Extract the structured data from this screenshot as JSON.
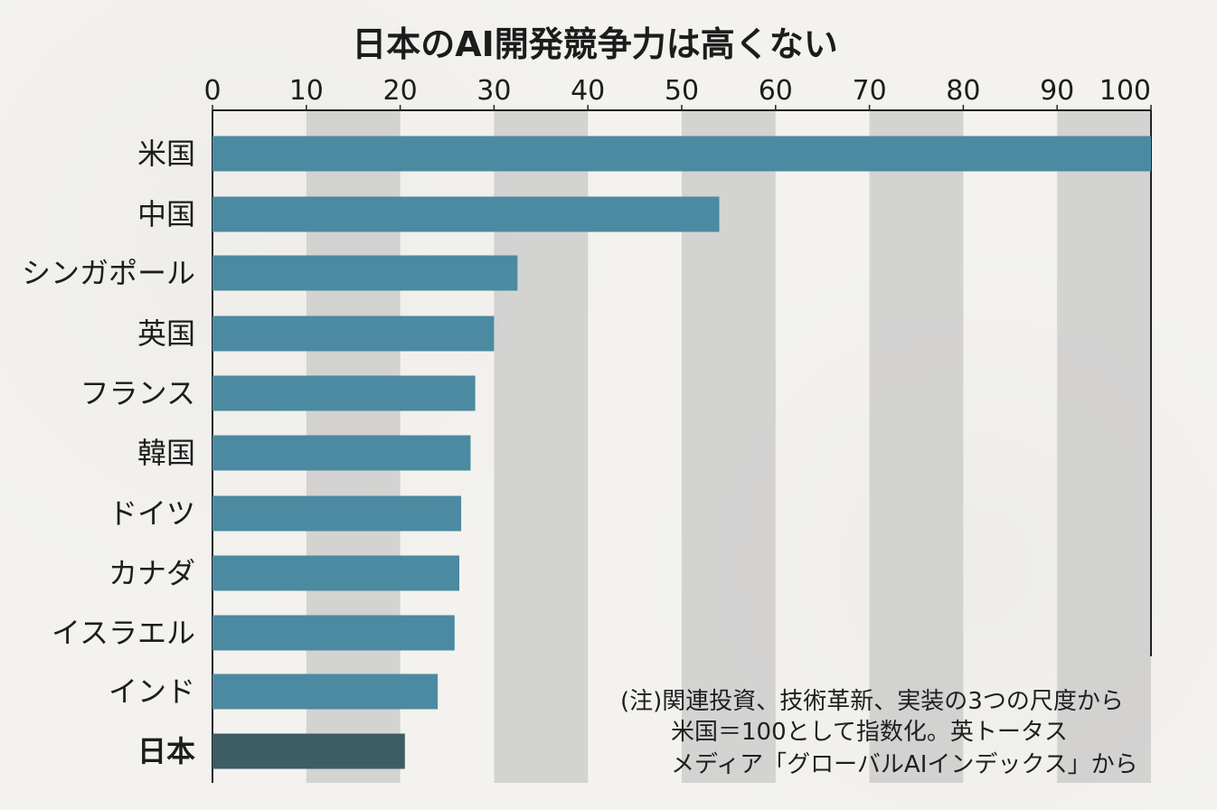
{
  "chart_data": {
    "type": "bar",
    "orientation": "horizontal",
    "title": "日本のAI開発競争力は高くない",
    "xlabel": "",
    "ylabel": "",
    "xlim": [
      0,
      100
    ],
    "x_ticks": [
      0,
      10,
      20,
      30,
      40,
      50,
      60,
      70,
      80,
      90,
      100
    ],
    "categories": [
      "米国",
      "中国",
      "シンガポール",
      "英国",
      "フランス",
      "韓国",
      "ドイツ",
      "カナダ",
      "イスラエル",
      "インド",
      "日本"
    ],
    "values": [
      100,
      54,
      32.5,
      30,
      28,
      27.5,
      26.5,
      26.3,
      25.8,
      24,
      20.5
    ],
    "highlight_category": "日本",
    "colors": {
      "bar": "#4b8aa0",
      "highlight_bar": "#3e5c65",
      "band": "#c8c8c8",
      "axis": "#222222"
    },
    "note_lines": [
      "(注)関連投資、技術革新、実装の3つの尺度から",
      "米国＝100として指数化。英トータス",
      "メディア「グローバルAIインデックス」から"
    ]
  }
}
